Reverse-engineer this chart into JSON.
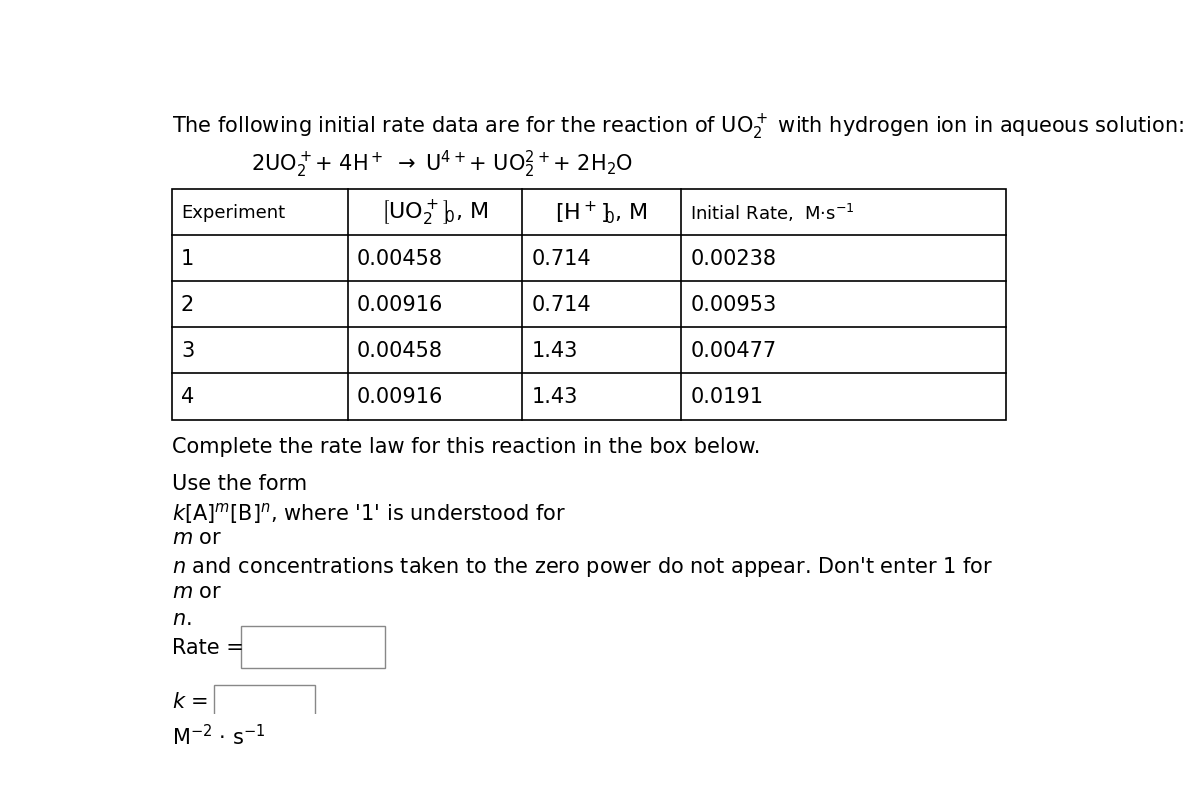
{
  "bg_color": "#ffffff",
  "font_size": 15,
  "table_data": [
    [
      "1",
      "0.00458",
      "0.714",
      "0.00238"
    ],
    [
      "2",
      "0.00916",
      "0.714",
      "0.00953"
    ],
    [
      "3",
      "0.00458",
      "1.43",
      "0.00477"
    ],
    [
      "4",
      "0.00916",
      "1.43",
      "0.0191"
    ]
  ]
}
